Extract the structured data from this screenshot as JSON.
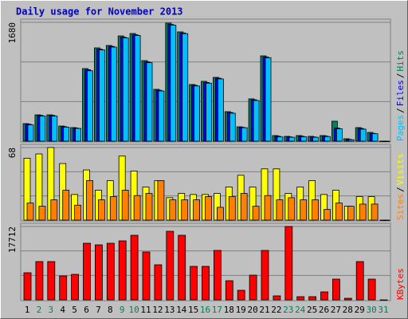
{
  "title": "Daily usage for November 2013",
  "legend_separator": "/",
  "chart_data": [
    {
      "type": "bar",
      "ylim": [
        0,
        1680
      ],
      "yticks": [
        1680
      ],
      "series": [
        {
          "name": "Hits",
          "color": "#00805c",
          "values": [
            248,
            372,
            372,
            214,
            192,
            1026,
            1319,
            1353,
            1488,
            1522,
            1139,
            733,
            1669,
            1545,
            801,
            846,
            902,
            417,
            203,
            598,
            1206,
            79,
            68,
            79,
            68,
            79,
            282,
            34,
            192,
            124,
            0
          ]
        },
        {
          "name": "Files",
          "color": "#0000ff",
          "values": [
            240,
            365,
            365,
            205,
            185,
            1010,
            1300,
            1340,
            1470,
            1505,
            1120,
            720,
            1650,
            1530,
            790,
            830,
            890,
            405,
            195,
            585,
            1190,
            70,
            60,
            70,
            60,
            72,
            185,
            25,
            180,
            110,
            0
          ]
        },
        {
          "name": "Pages",
          "color": "#00c0ff",
          "values": [
            230,
            355,
            355,
            198,
            180,
            995,
            1290,
            1330,
            1460,
            1495,
            1110,
            710,
            1640,
            1520,
            780,
            820,
            880,
            395,
            190,
            575,
            1180,
            60,
            55,
            62,
            55,
            65,
            175,
            20,
            170,
            105,
            0
          ]
        }
      ]
    },
    {
      "type": "bar",
      "ylim": [
        0,
        68
      ],
      "yticks": [
        68
      ],
      "series": [
        {
          "name": "Visits",
          "color": "#ffff00",
          "values": [
            58,
            62,
            68,
            53,
            24,
            47,
            28,
            37,
            60,
            46,
            31,
            37,
            21,
            25,
            24,
            24,
            25,
            31,
            42,
            31,
            48,
            48,
            25,
            31,
            37,
            24,
            28,
            13,
            22,
            22,
            0
          ]
        },
        {
          "name": "Sites",
          "color": "#ff8000",
          "values": [
            16,
            13,
            19,
            28,
            14,
            37,
            19,
            22,
            28,
            23,
            25,
            37,
            19,
            19,
            19,
            22,
            12,
            22,
            25,
            13,
            23,
            19,
            21,
            19,
            19,
            10,
            16,
            13,
            15,
            15,
            0
          ]
        }
      ]
    },
    {
      "type": "bar",
      "ylim": [
        0,
        17712
      ],
      "yticks": [
        17712
      ],
      "categories": [
        "1",
        "2",
        "3",
        "4",
        "5",
        "6",
        "7",
        "8",
        "9",
        "10",
        "11",
        "12",
        "13",
        "14",
        "15",
        "16",
        "17",
        "18",
        "19",
        "20",
        "21",
        "22",
        "23",
        "24",
        "25",
        "26",
        "27",
        "28",
        "29",
        "30",
        "31"
      ],
      "category_colors": [
        "#000000",
        "#00805c",
        "#00805c",
        "#000000",
        "#000000",
        "#000000",
        "#000000",
        "#000000",
        "#00805c",
        "#00805c",
        "#000000",
        "#000000",
        "#000000",
        "#000000",
        "#000000",
        "#00805c",
        "#00805c",
        "#000000",
        "#000000",
        "#000000",
        "#000000",
        "#000000",
        "#00805c",
        "#00805c",
        "#000000",
        "#000000",
        "#000000",
        "#000000",
        "#000000",
        "#00805c",
        "#00805c"
      ],
      "series": [
        {
          "name": "KBytes",
          "color": "#ff0000",
          "values": [
            6545,
            9240,
            9240,
            5775,
            6160,
            13668,
            13283,
            13668,
            14245,
            15593,
            11550,
            8470,
            16555,
            15593,
            8085,
            8085,
            11935,
            4620,
            2310,
            5968,
            11935,
            963,
            17712,
            770,
            770,
            1925,
            5005,
            385,
            9240,
            5005,
            0
          ]
        }
      ]
    }
  ]
}
